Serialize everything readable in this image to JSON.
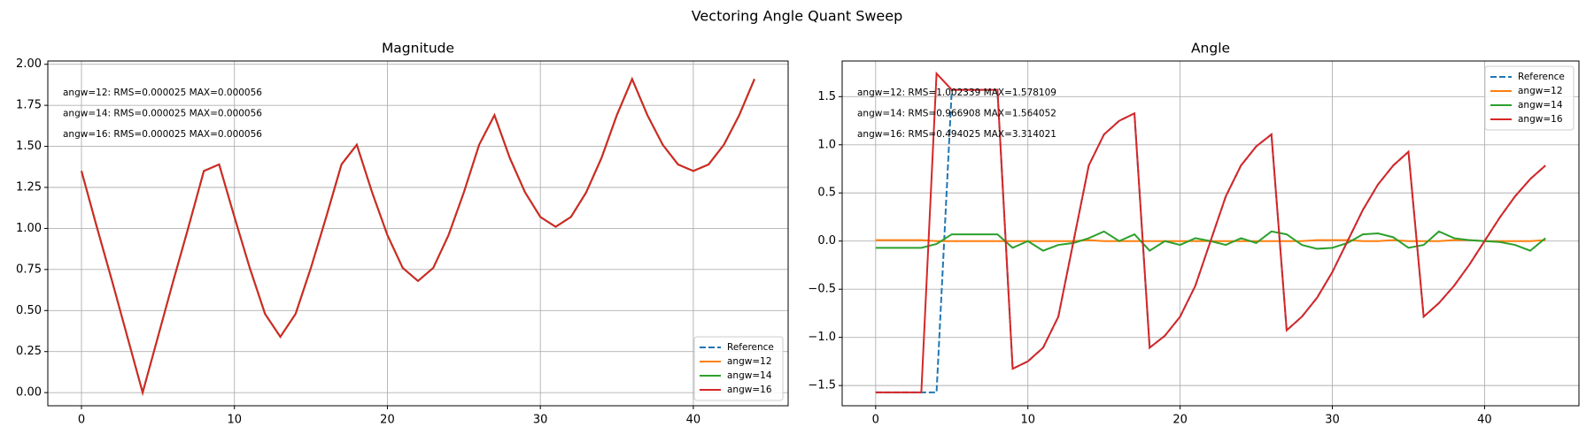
{
  "title": "Vectoring Angle Quant Sweep",
  "chart_data": [
    {
      "type": "line",
      "title": "Magnitude",
      "x": [
        0,
        1,
        2,
        3,
        4,
        5,
        6,
        7,
        8,
        9,
        10,
        11,
        12,
        13,
        14,
        15,
        16,
        17,
        18,
        19,
        20,
        21,
        22,
        23,
        24,
        25,
        26,
        27,
        28,
        29,
        30,
        31,
        32,
        33,
        34,
        35,
        36,
        37,
        38,
        39,
        40,
        41,
        42,
        43,
        44
      ],
      "series": [
        {
          "name": "Reference",
          "color": "#1f77b4",
          "dash": true,
          "values": [
            1.35,
            1.01,
            0.68,
            0.34,
            0.0,
            0.34,
            0.68,
            1.01,
            1.35,
            1.39,
            1.07,
            0.76,
            0.48,
            0.34,
            0.48,
            0.76,
            1.07,
            1.39,
            1.51,
            1.22,
            0.96,
            0.76,
            0.68,
            0.76,
            0.96,
            1.22,
            1.51,
            1.69,
            1.43,
            1.22,
            1.07,
            1.01,
            1.07,
            1.22,
            1.43,
            1.69,
            1.91,
            1.69,
            1.51,
            1.39,
            1.35,
            1.39,
            1.51,
            1.69,
            1.91
          ]
        },
        {
          "name": "angw=12",
          "color": "#ff7f0e",
          "values": [
            1.35,
            1.01,
            0.68,
            0.34,
            0.0,
            0.34,
            0.68,
            1.01,
            1.35,
            1.39,
            1.07,
            0.76,
            0.48,
            0.34,
            0.48,
            0.76,
            1.07,
            1.39,
            1.51,
            1.22,
            0.96,
            0.76,
            0.68,
            0.76,
            0.96,
            1.22,
            1.51,
            1.69,
            1.43,
            1.22,
            1.07,
            1.01,
            1.07,
            1.22,
            1.43,
            1.69,
            1.91,
            1.69,
            1.51,
            1.39,
            1.35,
            1.39,
            1.51,
            1.69,
            1.91
          ]
        },
        {
          "name": "angw=14",
          "color": "#2ca02c",
          "values": [
            1.35,
            1.01,
            0.68,
            0.34,
            0.0,
            0.34,
            0.68,
            1.01,
            1.35,
            1.39,
            1.07,
            0.76,
            0.48,
            0.34,
            0.48,
            0.76,
            1.07,
            1.39,
            1.51,
            1.22,
            0.96,
            0.76,
            0.68,
            0.76,
            0.96,
            1.22,
            1.51,
            1.69,
            1.43,
            1.22,
            1.07,
            1.01,
            1.07,
            1.22,
            1.43,
            1.69,
            1.91,
            1.69,
            1.51,
            1.39,
            1.35,
            1.39,
            1.51,
            1.69,
            1.91
          ]
        },
        {
          "name": "angw=16",
          "color": "#d62728",
          "values": [
            1.35,
            1.01,
            0.68,
            0.34,
            0.0,
            0.34,
            0.68,
            1.01,
            1.35,
            1.39,
            1.07,
            0.76,
            0.48,
            0.34,
            0.48,
            0.76,
            1.07,
            1.39,
            1.51,
            1.22,
            0.96,
            0.76,
            0.68,
            0.76,
            0.96,
            1.22,
            1.51,
            1.69,
            1.43,
            1.22,
            1.07,
            1.01,
            1.07,
            1.22,
            1.43,
            1.69,
            1.91,
            1.69,
            1.51,
            1.39,
            1.35,
            1.39,
            1.51,
            1.69,
            1.91
          ]
        }
      ],
      "annotations": [
        "angw=12: RMS=0.000025 MAX=0.000056",
        "angw=14: RMS=0.000025 MAX=0.000056",
        "angw=16: RMS=0.000025 MAX=0.000056"
      ],
      "xlim": [
        -2.2,
        46.2
      ],
      "ylim": [
        -0.08,
        2.02
      ],
      "xticks": [
        0,
        10,
        20,
        30,
        40
      ],
      "yticks": [
        {
          "value": 0,
          "label": "0.00"
        },
        0.25,
        {
          "value": 0.5,
          "label": "0.50"
        },
        0.75,
        {
          "value": 1,
          "label": "1.00"
        },
        1.25,
        {
          "value": 1.5,
          "label": "1.50"
        },
        1.75,
        {
          "value": 2,
          "label": "2.00"
        }
      ],
      "grid": true,
      "legend": "lower right"
    },
    {
      "type": "line",
      "title": "Angle",
      "x": [
        0,
        1,
        2,
        3,
        4,
        5,
        6,
        7,
        8,
        9,
        10,
        11,
        12,
        13,
        14,
        15,
        16,
        17,
        18,
        19,
        20,
        21,
        22,
        23,
        24,
        25,
        26,
        27,
        28,
        29,
        30,
        31,
        32,
        33,
        34,
        35,
        36,
        37,
        38,
        39,
        40,
        41,
        42,
        43,
        44
      ],
      "series": [
        {
          "name": "Reference",
          "color": "#1f77b4",
          "dash": true,
          "values": [
            -1.571,
            -1.571,
            -1.571,
            -1.571,
            -1.571,
            1.571,
            1.571,
            1.571,
            1.571,
            -1.326,
            -1.249,
            -1.107,
            -0.785,
            0,
            0.785,
            1.107,
            1.249,
            1.326,
            -1.107,
            -0.983,
            -0.785,
            -0.464,
            0,
            0.464,
            0.785,
            0.983,
            1.107,
            -0.927,
            -0.785,
            -0.588,
            -0.322,
            0,
            0.322,
            0.588,
            0.785,
            0.927,
            -0.785,
            -0.644,
            -0.464,
            -0.245,
            0,
            0.245,
            0.464,
            0.644,
            0.785
          ]
        },
        {
          "name": "angw=12",
          "color": "#ff7f0e",
          "values": [
            0.01,
            0.01,
            0.01,
            0.01,
            0.0,
            0.0,
            0.0,
            0.0,
            0.0,
            0.0,
            0.0,
            0.0,
            0.0,
            0.0,
            0.01,
            0.0,
            0.0,
            0.0,
            0.0,
            0.0,
            0.0,
            0.0,
            0.0,
            0.0,
            0.0,
            0.0,
            0.0,
            0.0,
            0.0,
            0.01,
            0.01,
            0.01,
            0.0,
            0.0,
            0.01,
            0.0,
            0.0,
            0.0,
            0.01,
            0.01,
            0.0,
            0.0,
            0.0,
            0.0,
            0.01
          ]
        },
        {
          "name": "angw=14",
          "color": "#2ca02c",
          "values": [
            -0.07,
            -0.07,
            -0.07,
            -0.07,
            -0.03,
            0.07,
            0.07,
            0.07,
            0.07,
            -0.07,
            0.0,
            -0.1,
            -0.04,
            -0.02,
            0.03,
            0.1,
            0.0,
            0.07,
            -0.1,
            0.0,
            -0.04,
            0.03,
            0.0,
            -0.04,
            0.03,
            -0.02,
            0.1,
            0.07,
            -0.04,
            -0.08,
            -0.07,
            -0.02,
            0.07,
            0.08,
            0.04,
            -0.07,
            -0.04,
            0.1,
            0.03,
            0.01,
            0.0,
            -0.01,
            -0.04,
            -0.1,
            0.03
          ]
        },
        {
          "name": "angw=16",
          "color": "#d62728",
          "values": [
            -1.571,
            -1.571,
            -1.571,
            -1.571,
            1.74,
            1.571,
            1.571,
            1.571,
            1.571,
            -1.326,
            -1.249,
            -1.107,
            -0.785,
            0,
            0.785,
            1.107,
            1.249,
            1.326,
            -1.107,
            -0.983,
            -0.785,
            -0.464,
            0,
            0.464,
            0.785,
            0.983,
            1.107,
            -0.927,
            -0.785,
            -0.588,
            -0.322,
            0,
            0.322,
            0.588,
            0.785,
            0.927,
            -0.785,
            -0.644,
            -0.464,
            -0.245,
            0,
            0.245,
            0.464,
            0.644,
            0.785
          ]
        }
      ],
      "annotations": [
        "angw=12: RMS=1.002339 MAX=1.578109",
        "angw=14: RMS=0.966908 MAX=1.564052",
        "angw=16: RMS=0.494025 MAX=3.314021"
      ],
      "xlim": [
        -2.2,
        46.2
      ],
      "ylim": [
        -1.71,
        1.87
      ],
      "xticks": [
        0,
        10,
        20,
        30,
        40
      ],
      "yticks": [
        {
          "value": -1.5,
          "label": "−1.5"
        },
        {
          "value": -1,
          "label": "−1.0"
        },
        {
          "value": -0.5,
          "label": "−0.5"
        },
        {
          "value": 0,
          "label": "0.0"
        },
        0.5,
        {
          "value": 1,
          "label": "1.0"
        },
        1.5
      ],
      "grid": true,
      "legend": "upper right"
    }
  ]
}
